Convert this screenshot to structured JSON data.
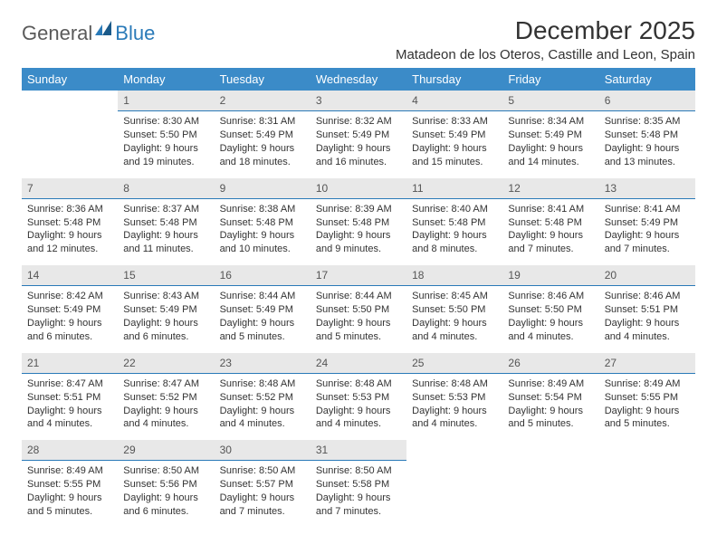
{
  "logo": {
    "part1": "General",
    "part2": "Blue"
  },
  "title": "December 2025",
  "location": "Matadeon de los Oteros, Castille and Leon, Spain",
  "colors": {
    "header_bg": "#3b8bc8",
    "header_text": "#ffffff",
    "daynum_bg": "#e8e8e8",
    "daynum_border": "#2a7ab8",
    "text": "#333333",
    "logo_gray": "#5a5a5a",
    "logo_blue": "#2a7ab8"
  },
  "weekdays": [
    "Sunday",
    "Monday",
    "Tuesday",
    "Wednesday",
    "Thursday",
    "Friday",
    "Saturday"
  ],
  "weeks": [
    {
      "nums": [
        "",
        "1",
        "2",
        "3",
        "4",
        "5",
        "6"
      ],
      "cells": [
        null,
        {
          "sr": "Sunrise: 8:30 AM",
          "ss": "Sunset: 5:50 PM",
          "d1": "Daylight: 9 hours",
          "d2": "and 19 minutes."
        },
        {
          "sr": "Sunrise: 8:31 AM",
          "ss": "Sunset: 5:49 PM",
          "d1": "Daylight: 9 hours",
          "d2": "and 18 minutes."
        },
        {
          "sr": "Sunrise: 8:32 AM",
          "ss": "Sunset: 5:49 PM",
          "d1": "Daylight: 9 hours",
          "d2": "and 16 minutes."
        },
        {
          "sr": "Sunrise: 8:33 AM",
          "ss": "Sunset: 5:49 PM",
          "d1": "Daylight: 9 hours",
          "d2": "and 15 minutes."
        },
        {
          "sr": "Sunrise: 8:34 AM",
          "ss": "Sunset: 5:49 PM",
          "d1": "Daylight: 9 hours",
          "d2": "and 14 minutes."
        },
        {
          "sr": "Sunrise: 8:35 AM",
          "ss": "Sunset: 5:48 PM",
          "d1": "Daylight: 9 hours",
          "d2": "and 13 minutes."
        }
      ]
    },
    {
      "nums": [
        "7",
        "8",
        "9",
        "10",
        "11",
        "12",
        "13"
      ],
      "cells": [
        {
          "sr": "Sunrise: 8:36 AM",
          "ss": "Sunset: 5:48 PM",
          "d1": "Daylight: 9 hours",
          "d2": "and 12 minutes."
        },
        {
          "sr": "Sunrise: 8:37 AM",
          "ss": "Sunset: 5:48 PM",
          "d1": "Daylight: 9 hours",
          "d2": "and 11 minutes."
        },
        {
          "sr": "Sunrise: 8:38 AM",
          "ss": "Sunset: 5:48 PM",
          "d1": "Daylight: 9 hours",
          "d2": "and 10 minutes."
        },
        {
          "sr": "Sunrise: 8:39 AM",
          "ss": "Sunset: 5:48 PM",
          "d1": "Daylight: 9 hours",
          "d2": "and 9 minutes."
        },
        {
          "sr": "Sunrise: 8:40 AM",
          "ss": "Sunset: 5:48 PM",
          "d1": "Daylight: 9 hours",
          "d2": "and 8 minutes."
        },
        {
          "sr": "Sunrise: 8:41 AM",
          "ss": "Sunset: 5:48 PM",
          "d1": "Daylight: 9 hours",
          "d2": "and 7 minutes."
        },
        {
          "sr": "Sunrise: 8:41 AM",
          "ss": "Sunset: 5:49 PM",
          "d1": "Daylight: 9 hours",
          "d2": "and 7 minutes."
        }
      ]
    },
    {
      "nums": [
        "14",
        "15",
        "16",
        "17",
        "18",
        "19",
        "20"
      ],
      "cells": [
        {
          "sr": "Sunrise: 8:42 AM",
          "ss": "Sunset: 5:49 PM",
          "d1": "Daylight: 9 hours",
          "d2": "and 6 minutes."
        },
        {
          "sr": "Sunrise: 8:43 AM",
          "ss": "Sunset: 5:49 PM",
          "d1": "Daylight: 9 hours",
          "d2": "and 6 minutes."
        },
        {
          "sr": "Sunrise: 8:44 AM",
          "ss": "Sunset: 5:49 PM",
          "d1": "Daylight: 9 hours",
          "d2": "and 5 minutes."
        },
        {
          "sr": "Sunrise: 8:44 AM",
          "ss": "Sunset: 5:50 PM",
          "d1": "Daylight: 9 hours",
          "d2": "and 5 minutes."
        },
        {
          "sr": "Sunrise: 8:45 AM",
          "ss": "Sunset: 5:50 PM",
          "d1": "Daylight: 9 hours",
          "d2": "and 4 minutes."
        },
        {
          "sr": "Sunrise: 8:46 AM",
          "ss": "Sunset: 5:50 PM",
          "d1": "Daylight: 9 hours",
          "d2": "and 4 minutes."
        },
        {
          "sr": "Sunrise: 8:46 AM",
          "ss": "Sunset: 5:51 PM",
          "d1": "Daylight: 9 hours",
          "d2": "and 4 minutes."
        }
      ]
    },
    {
      "nums": [
        "21",
        "22",
        "23",
        "24",
        "25",
        "26",
        "27"
      ],
      "cells": [
        {
          "sr": "Sunrise: 8:47 AM",
          "ss": "Sunset: 5:51 PM",
          "d1": "Daylight: 9 hours",
          "d2": "and 4 minutes."
        },
        {
          "sr": "Sunrise: 8:47 AM",
          "ss": "Sunset: 5:52 PM",
          "d1": "Daylight: 9 hours",
          "d2": "and 4 minutes."
        },
        {
          "sr": "Sunrise: 8:48 AM",
          "ss": "Sunset: 5:52 PM",
          "d1": "Daylight: 9 hours",
          "d2": "and 4 minutes."
        },
        {
          "sr": "Sunrise: 8:48 AM",
          "ss": "Sunset: 5:53 PM",
          "d1": "Daylight: 9 hours",
          "d2": "and 4 minutes."
        },
        {
          "sr": "Sunrise: 8:48 AM",
          "ss": "Sunset: 5:53 PM",
          "d1": "Daylight: 9 hours",
          "d2": "and 4 minutes."
        },
        {
          "sr": "Sunrise: 8:49 AM",
          "ss": "Sunset: 5:54 PM",
          "d1": "Daylight: 9 hours",
          "d2": "and 5 minutes."
        },
        {
          "sr": "Sunrise: 8:49 AM",
          "ss": "Sunset: 5:55 PM",
          "d1": "Daylight: 9 hours",
          "d2": "and 5 minutes."
        }
      ]
    },
    {
      "nums": [
        "28",
        "29",
        "30",
        "31",
        "",
        "",
        ""
      ],
      "cells": [
        {
          "sr": "Sunrise: 8:49 AM",
          "ss": "Sunset: 5:55 PM",
          "d1": "Daylight: 9 hours",
          "d2": "and 5 minutes."
        },
        {
          "sr": "Sunrise: 8:50 AM",
          "ss": "Sunset: 5:56 PM",
          "d1": "Daylight: 9 hours",
          "d2": "and 6 minutes."
        },
        {
          "sr": "Sunrise: 8:50 AM",
          "ss": "Sunset: 5:57 PM",
          "d1": "Daylight: 9 hours",
          "d2": "and 7 minutes."
        },
        {
          "sr": "Sunrise: 8:50 AM",
          "ss": "Sunset: 5:58 PM",
          "d1": "Daylight: 9 hours",
          "d2": "and 7 minutes."
        },
        null,
        null,
        null
      ]
    }
  ]
}
